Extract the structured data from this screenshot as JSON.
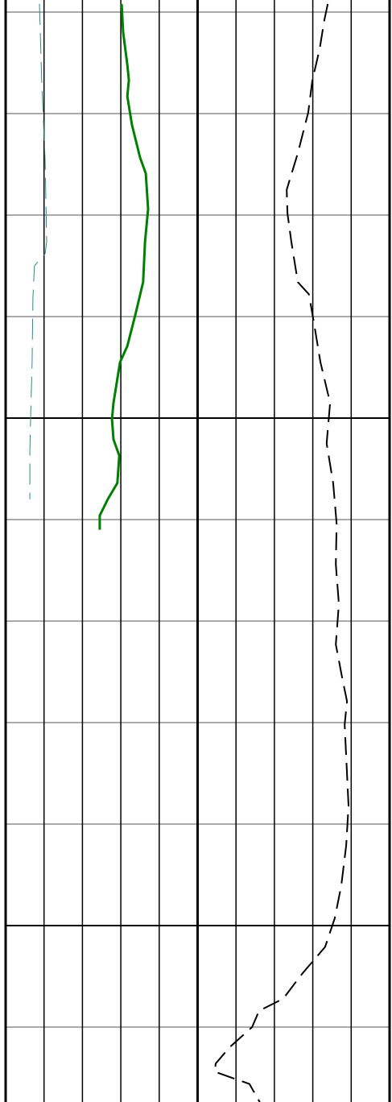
{
  "chart_data": {
    "type": "line",
    "invert_y": true,
    "xlim": [
      0,
      10
    ],
    "xticks": [
      0,
      1,
      2,
      3,
      4,
      5,
      6,
      7,
      8,
      9,
      10
    ],
    "major_xticks": [
      0,
      5,
      10
    ],
    "ylim": [
      -1.19,
      107.38
    ],
    "yticks": [
      0,
      10,
      20,
      30,
      40,
      50,
      60,
      70,
      80,
      90,
      100
    ],
    "major_yticks": [
      40,
      90
    ],
    "grid": true,
    "series": [
      {
        "color": "#2a8c8c",
        "width": 1,
        "dash": "26,10",
        "depth": [
          -0.8,
          6.7,
          14.7,
          22.6,
          23.8,
          25.0,
          28.2,
          34.5,
          40.1,
          43.3,
          48.0
        ],
        "values": [
          0.88,
          0.94,
          1.03,
          1.07,
          1.03,
          0.75,
          0.71,
          0.69,
          0.65,
          0.63,
          0.63
        ]
      },
      {
        "color": "#008000",
        "width": 3,
        "dash": "none",
        "depth": [
          -0.8,
          2.0,
          5.2,
          6.7,
          8.3,
          11.1,
          14.3,
          15.9,
          19.4,
          22.6,
          26.6,
          29.8,
          32.9,
          34.5,
          38.5,
          40.1,
          42.1,
          43.7,
          46.4,
          48.0,
          49.6,
          51.0
        ],
        "values": [
          3.02,
          3.06,
          3.17,
          3.21,
          3.17,
          3.29,
          3.5,
          3.65,
          3.71,
          3.63,
          3.58,
          3.38,
          3.17,
          2.98,
          2.81,
          2.77,
          2.81,
          2.96,
          2.91,
          2.66,
          2.45,
          2.45
        ]
      },
      {
        "color": "#000000",
        "width": 2,
        "dash": "22,10",
        "depth": [
          -0.8,
          0.8,
          3.6,
          6.7,
          9.9,
          13.9,
          17.5,
          19.8,
          22.6,
          26.6,
          27.8,
          30.6,
          34.5,
          38.5,
          42.5,
          46.4,
          50.4,
          54.4,
          58.3,
          62.3,
          65.5,
          67.9,
          70.2,
          78.2,
          82.1,
          86.1,
          89.3,
          92.1,
          94.8,
          97.2,
          98.4,
          100.0,
          102.0,
          103.6,
          104.4,
          105.6,
          107.4
        ],
        "values": [
          8.39,
          8.3,
          8.18,
          7.99,
          7.88,
          7.61,
          7.32,
          7.34,
          7.44,
          7.61,
          7.9,
          8.03,
          8.2,
          8.45,
          8.36,
          8.53,
          8.62,
          8.6,
          8.68,
          8.6,
          8.76,
          8.89,
          8.83,
          8.93,
          8.87,
          8.74,
          8.57,
          8.32,
          7.71,
          7.23,
          6.6,
          6.42,
          5.83,
          5.47,
          5.45,
          6.35,
          6.62
        ]
      }
    ]
  }
}
